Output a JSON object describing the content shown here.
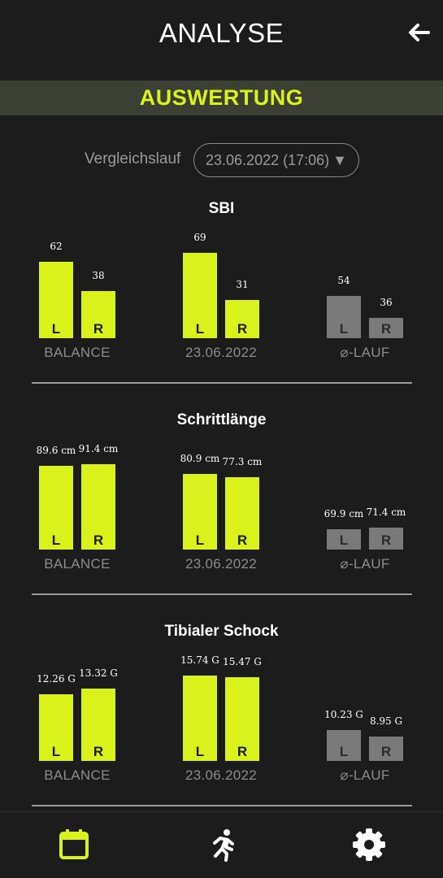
{
  "header": {
    "title": "ANALYSE",
    "back_icon": "arrow-left-icon"
  },
  "banner": {
    "title": "AUSWERTUNG"
  },
  "compare": {
    "label": "Vergleichslauf",
    "selected": "23.06.2022 (17:06)",
    "caret": "▼"
  },
  "colors": {
    "accent": "#d9f21b",
    "gray_bar": "#7a7a7a",
    "background": "#1c1c1c",
    "banner_bg": "#3c4034"
  },
  "sections": [
    {
      "title": "SBI",
      "groups": [
        {
          "label": "BALANCE",
          "style": "green",
          "left_value": 62,
          "right_value": 38,
          "left_text": "62",
          "right_text": "38"
        },
        {
          "label": "23.06.2022",
          "style": "green",
          "left_value": 69,
          "right_value": 31,
          "left_text": "69",
          "right_text": "31"
        },
        {
          "label": "⌀-LAUF",
          "style": "gray",
          "left_value": 54,
          "right_value": 36,
          "left_text": "54",
          "right_text": "36"
        }
      ]
    },
    {
      "title": "Schrittlänge",
      "groups": [
        {
          "label": "BALANCE",
          "style": "green",
          "left_value": 89.6,
          "right_value": 91.4,
          "left_text": "89.6 cm",
          "right_text": "91.4 cm"
        },
        {
          "label": "23.06.2022",
          "style": "green",
          "left_value": 80.9,
          "right_value": 77.3,
          "left_text": "80.9 cm",
          "right_text": "77.3 cm"
        },
        {
          "label": "⌀-LAUF",
          "style": "gray",
          "left_value": 69.9,
          "right_value": 71.4,
          "left_text": "69.9 cm",
          "right_text": "71.4 cm"
        }
      ]
    },
    {
      "title": "Tibialer Schock",
      "groups": [
        {
          "label": "BALANCE",
          "style": "green",
          "left_value": 12.26,
          "right_value": 13.32,
          "left_text": "12.26 G",
          "right_text": "13.32 G"
        },
        {
          "label": "23.06.2022",
          "style": "green",
          "left_value": 15.74,
          "right_value": 15.47,
          "left_text": "15.74 G",
          "right_text": "15.47 G"
        },
        {
          "label": "⌀-LAUF",
          "style": "gray",
          "left_value": 10.23,
          "right_value": 8.95,
          "left_text": "10.23 G",
          "right_text": "8.95 G"
        }
      ]
    }
  ],
  "bar_letters": {
    "left": "L",
    "right": "R"
  },
  "nav": [
    {
      "name": "calendar-icon",
      "active": true
    },
    {
      "name": "running-icon",
      "active": false
    },
    {
      "name": "gear-icon",
      "active": false
    }
  ]
}
